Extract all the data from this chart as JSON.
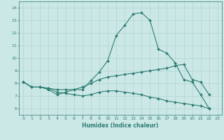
{
  "xlabel": "Humidex (Indice chaleur)",
  "xlim": [
    -0.5,
    23.5
  ],
  "ylim": [
    5.5,
    14.5
  ],
  "yticks": [
    6,
    7,
    8,
    9,
    10,
    11,
    12,
    13,
    14
  ],
  "xticks": [
    0,
    1,
    2,
    3,
    4,
    5,
    6,
    7,
    8,
    9,
    10,
    11,
    12,
    13,
    14,
    15,
    16,
    17,
    18,
    19,
    20,
    21,
    22,
    23
  ],
  "bg_color": "#cce8e6",
  "line_color": "#2e7d74",
  "grid_color": "#aed4d0",
  "series": [
    {
      "x": [
        0,
        1,
        2,
        3,
        4,
        5,
        6,
        7,
        8,
        9,
        10,
        11,
        12,
        13,
        14,
        15,
        16,
        17,
        18,
        19,
        20,
        21,
        22
      ],
      "y": [
        8.1,
        7.7,
        7.7,
        7.5,
        7.1,
        7.3,
        7.5,
        7.5,
        8.2,
        8.9,
        9.8,
        11.8,
        12.6,
        13.5,
        13.6,
        13.0,
        10.7,
        10.4,
        9.6,
        8.3,
        8.1,
        7.1,
        6.0
      ]
    },
    {
      "x": [
        0,
        1,
        2,
        3,
        4,
        5,
        6,
        7,
        8,
        9,
        10,
        11,
        12,
        13,
        14,
        15,
        16,
        17,
        18,
        19,
        20,
        21,
        22
      ],
      "y": [
        8.1,
        7.7,
        7.7,
        7.6,
        7.5,
        7.5,
        7.5,
        7.7,
        8.0,
        8.3,
        8.5,
        8.6,
        8.7,
        8.8,
        8.9,
        9.0,
        9.1,
        9.2,
        9.4,
        9.5,
        8.3,
        8.1,
        7.1
      ]
    },
    {
      "x": [
        0,
        1,
        2,
        3,
        4,
        5,
        6,
        7,
        8,
        9,
        10,
        11,
        12,
        13,
        14,
        15,
        16,
        17,
        18,
        19,
        20,
        21,
        22
      ],
      "y": [
        8.1,
        7.7,
        7.7,
        7.6,
        7.3,
        7.2,
        7.1,
        7.0,
        7.1,
        7.3,
        7.4,
        7.4,
        7.3,
        7.2,
        7.1,
        6.9,
        6.8,
        6.6,
        6.5,
        6.4,
        6.3,
        6.2,
        6.0
      ]
    }
  ]
}
